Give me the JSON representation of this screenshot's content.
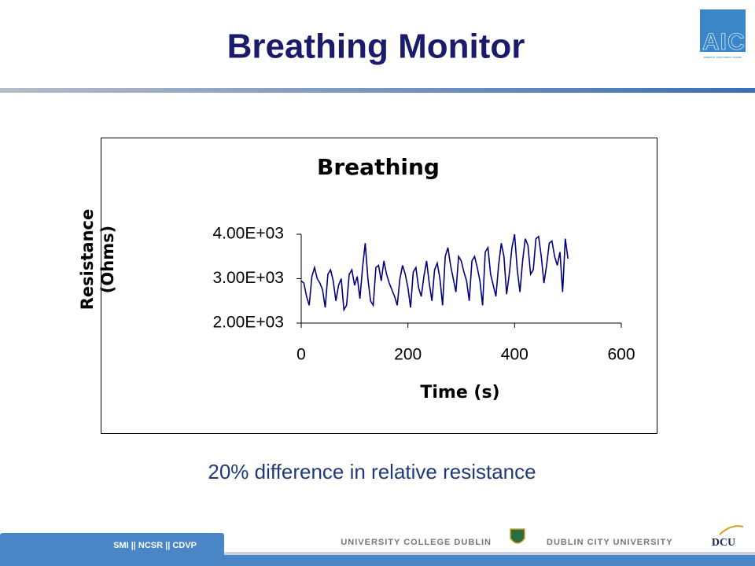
{
  "slide_title": "Breathing Monitor",
  "logo": {
    "text": "AIC",
    "subtext": "adaptive information cluster"
  },
  "caption": "20% difference in relative resistance",
  "footer": {
    "left": "SMI || NCSR || CDVP",
    "ucd": "UNIVERSITY COLLEGE DUBLIN",
    "dcu": "DUBLIN CITY UNIVERSITY",
    "dcu_logo": "DCU"
  },
  "chart_data": {
    "type": "line",
    "title": "Breathing",
    "x_label": "Time (s)",
    "y_label": "Resistance (Ohms)",
    "color": "#000080",
    "xlim": [
      0,
      600
    ],
    "xticks": [
      0,
      200,
      400,
      600
    ],
    "ylim": [
      2000,
      4000
    ],
    "yticks": [
      {
        "value": 2000,
        "label": "2.00E+03"
      },
      {
        "value": 3000,
        "label": "3.00E+03"
      },
      {
        "value": 4000,
        "label": "4.00E+03"
      }
    ],
    "x": [
      0,
      5,
      10,
      15,
      20,
      25,
      30,
      35,
      40,
      45,
      50,
      55,
      60,
      65,
      70,
      75,
      80,
      85,
      90,
      95,
      100,
      105,
      110,
      115,
      120,
      125,
      130,
      135,
      140,
      145,
      150,
      155,
      160,
      165,
      170,
      175,
      180,
      185,
      190,
      195,
      200,
      205,
      210,
      215,
      220,
      225,
      230,
      235,
      240,
      245,
      250,
      255,
      260,
      265,
      270,
      275,
      280,
      285,
      290,
      295,
      300,
      305,
      310,
      315,
      320,
      325,
      330,
      335,
      340,
      345,
      350,
      355,
      360,
      365,
      370,
      375,
      380,
      385,
      390,
      395,
      400,
      405,
      410,
      415,
      420,
      425,
      430,
      435,
      440,
      445,
      450,
      455,
      460,
      465,
      470,
      475,
      480,
      485,
      490,
      495,
      500
    ],
    "values": [
      2950,
      2900,
      2600,
      2400,
      3050,
      3250,
      3000,
      2900,
      2750,
      2350,
      3100,
      3200,
      2950,
      2500,
      2850,
      3000,
      2300,
      2400,
      3100,
      3200,
      2850,
      3050,
      2550,
      3250,
      3800,
      3000,
      2500,
      2400,
      3250,
      3300,
      2950,
      3400,
      3100,
      2900,
      2750,
      2600,
      2400,
      3000,
      3300,
      3100,
      2800,
      2350,
      3150,
      3250,
      2800,
      2600,
      3050,
      3400,
      2900,
      2500,
      3200,
      3350,
      3000,
      2400,
      3500,
      3700,
      3300,
      3000,
      2700,
      3500,
      3400,
      3150,
      2950,
      2500,
      3400,
      3500,
      3250,
      2950,
      2400,
      3600,
      3700,
      3100,
      2850,
      2600,
      3300,
      3800,
      3500,
      2650,
      3100,
      3700,
      4000,
      3200,
      2700,
      3400,
      3900,
      3750,
      3100,
      3200,
      3900,
      3950,
      3500,
      2900,
      3300,
      3800,
      3850,
      3500,
      3300,
      3600,
      2700,
      3900,
      3450
    ]
  }
}
